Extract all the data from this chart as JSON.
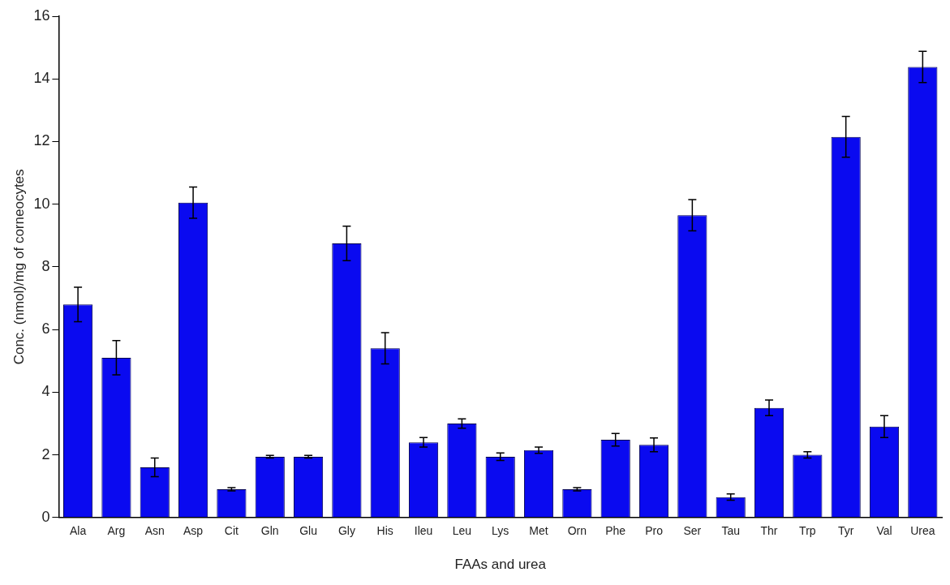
{
  "chart_data": {
    "type": "bar",
    "xlabel": "FAAs and urea",
    "ylabel": "Conc. (nmol)/mg of corneocytes",
    "categories": [
      "Ala",
      "Arg",
      "Asn",
      "Asp",
      "Cit",
      "Gln",
      "Glu",
      "Gly",
      "His",
      "Ileu",
      "Leu",
      "Lys",
      "Met",
      "Orn",
      "Phe",
      "Pro",
      "Ser",
      "Tau",
      "Thr",
      "Trp",
      "Tyr",
      "Val",
      "Urea"
    ],
    "values": [
      6.8,
      5.1,
      1.6,
      10.05,
      0.9,
      1.94,
      1.94,
      8.75,
      5.4,
      2.4,
      3.0,
      1.94,
      2.15,
      0.9,
      2.48,
      2.32,
      9.65,
      0.65,
      3.5,
      2.0,
      12.15,
      2.9,
      14.38
    ],
    "errors": [
      0.55,
      0.55,
      0.3,
      0.5,
      0.05,
      0.04,
      0.04,
      0.55,
      0.5,
      0.15,
      0.15,
      0.12,
      0.1,
      0.05,
      0.2,
      0.22,
      0.5,
      0.1,
      0.25,
      0.1,
      0.65,
      0.35,
      0.5
    ],
    "color": "#0a0af0",
    "ylim": [
      0,
      16
    ],
    "yticks": [
      0,
      2,
      4,
      6,
      8,
      10,
      12,
      14,
      16
    ],
    "grid": false,
    "legend": false
  }
}
